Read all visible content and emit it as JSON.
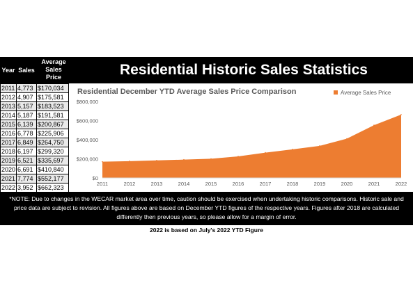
{
  "table": {
    "headers": {
      "year": "Year",
      "sales": "Sales",
      "price": "Average Sales Price"
    },
    "rows": [
      {
        "year": "2011",
        "sales": "4,773",
        "price": "$170,034"
      },
      {
        "year": "2012",
        "sales": "4,907",
        "price": "$175,581"
      },
      {
        "year": "2013",
        "sales": "5,157",
        "price": "$183,523"
      },
      {
        "year": "2014",
        "sales": "5,187",
        "price": "$191,581"
      },
      {
        "year": "2015",
        "sales": "6,139",
        "price": "$200,867"
      },
      {
        "year": "2016",
        "sales": "6,778",
        "price": "$225,906"
      },
      {
        "year": "2017",
        "sales": "6,849",
        "price": "$264,750"
      },
      {
        "year": "2018",
        "sales": "6,197",
        "price": "$299,320"
      },
      {
        "year": "2019",
        "sales": "6,521",
        "price": "$335,697"
      },
      {
        "year": "2020",
        "sales": "6,691",
        "price": "$410,840"
      },
      {
        "year": "2021",
        "sales": "7,774",
        "price": "$552,177"
      },
      {
        "year": "2022",
        "sales": "3,952",
        "price": "$662,323"
      }
    ]
  },
  "title": "Residential Historic Sales Statistics",
  "note": "*NOTE: Due to changes in the WECAR market area over time, caution should be exercised when undertaking historic comparisons. Historic sale and price data are subject to revision. All figures above are based on December YTD figures of the respective years. Figures after 2018 are calculated differently then previous years, so please allow for a margin of error.",
  "footnote": "2022 is based on July's 2022 YTD Figure",
  "chart_data": {
    "type": "area",
    "title": "Residential December YTD Average Sales Price Comparison",
    "x": [
      "2011",
      "2012",
      "2013",
      "2014",
      "2015",
      "2016",
      "2017",
      "2018",
      "2019",
      "2020",
      "2021",
      "2022"
    ],
    "series": [
      {
        "name": "Average Sales Price",
        "values": [
          170034,
          175581,
          183523,
          191581,
          200867,
          225906,
          264750,
          299320,
          335697,
          410840,
          552177,
          662323
        ],
        "color": "#ed7d31"
      }
    ],
    "ylim": [
      0,
      800000
    ],
    "yticks": [
      0,
      200000,
      400000,
      600000,
      800000
    ],
    "ytick_labels": [
      "$0",
      "$200,000",
      "$400,000",
      "$600,000",
      "$800,000"
    ],
    "legend_position": "top-right",
    "grid": false
  }
}
